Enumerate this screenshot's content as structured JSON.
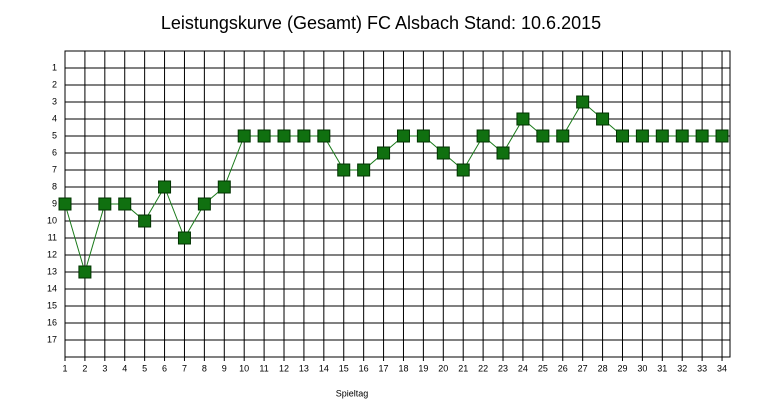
{
  "chart_data": {
    "type": "line",
    "title": "Leistungskurve (Gesamt) FC Alsbach Stand: 10.6.2015",
    "xlabel": "Spieltag",
    "x": [
      1,
      2,
      3,
      4,
      5,
      6,
      7,
      8,
      9,
      10,
      11,
      12,
      13,
      14,
      15,
      16,
      17,
      18,
      19,
      20,
      21,
      22,
      23,
      24,
      25,
      26,
      27,
      28,
      29,
      30,
      31,
      32,
      33,
      34
    ],
    "values": [
      9,
      13,
      9,
      9,
      10,
      8,
      11,
      9,
      8,
      5,
      5,
      5,
      5,
      5,
      7,
      7,
      6,
      5,
      5,
      6,
      7,
      5,
      6,
      4,
      5,
      5,
      3,
      4,
      5,
      5,
      5,
      5,
      5,
      5
    ],
    "color": "#1a7a1a",
    "marker_color": "#107010",
    "xlim": [
      1,
      34.4
    ],
    "ylim": [
      0,
      18
    ],
    "y_reversed": true,
    "grid": true,
    "xticks": [
      1,
      2,
      3,
      4,
      5,
      6,
      7,
      8,
      9,
      10,
      11,
      12,
      13,
      14,
      15,
      16,
      17,
      18,
      19,
      20,
      21,
      22,
      23,
      24,
      25,
      26,
      27,
      28,
      29,
      30,
      31,
      32,
      33,
      34
    ],
    "yticks": [
      1,
      2,
      3,
      4,
      5,
      6,
      7,
      8,
      9,
      10,
      11,
      12,
      13,
      14,
      15,
      16,
      17
    ]
  }
}
